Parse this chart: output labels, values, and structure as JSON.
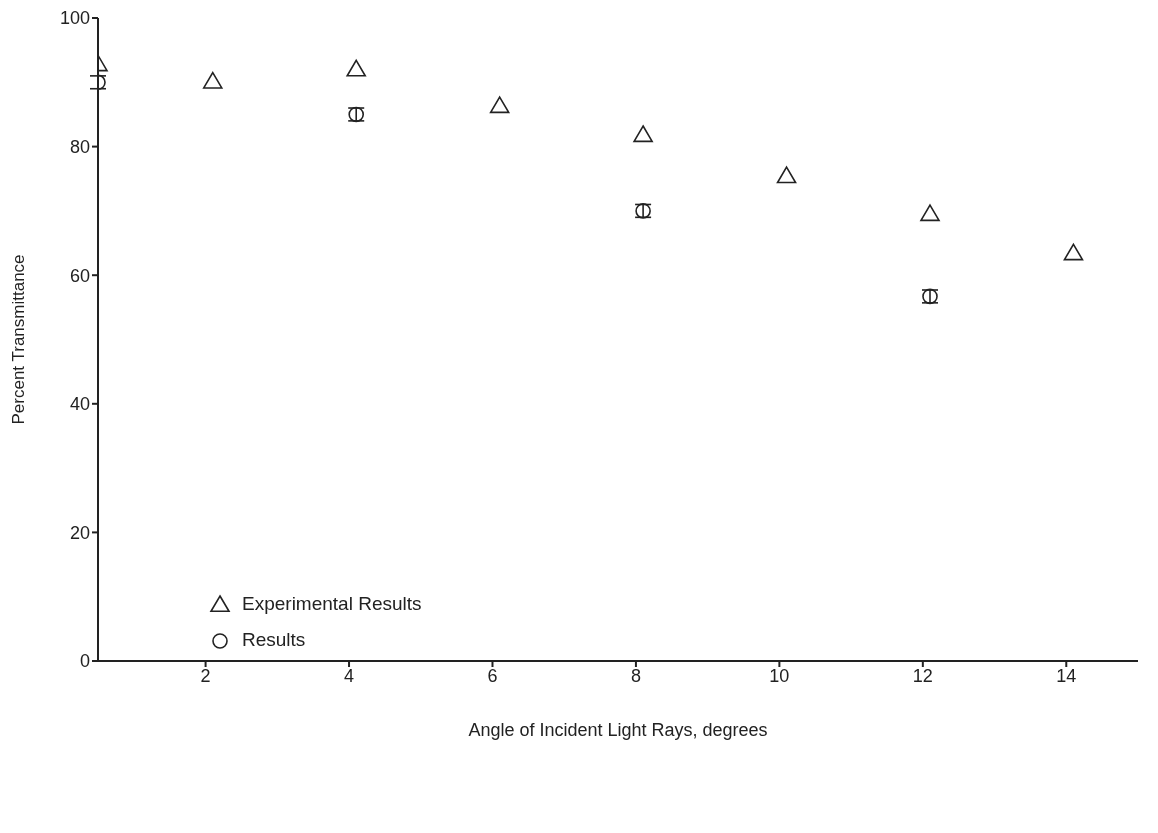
{
  "chart_data": {
    "type": "scatter",
    "xlabel": "Angle of Incident Light Rays, degrees",
    "ylabel": "Percent Transmittance",
    "xlim": [
      0.5,
      15
    ],
    "xticks": [
      2,
      4,
      6,
      8,
      10,
      12,
      14
    ],
    "ylim": [
      0,
      100
    ],
    "yticks": [
      0,
      20,
      40,
      60,
      80,
      100
    ],
    "grid": false,
    "legend": "bottom left",
    "series": [
      {
        "name": "Experimental Results",
        "color": "#222222",
        "marker": "triangle",
        "x": [
          0.5,
          2.1,
          4.1,
          6.1,
          8.1,
          10.1,
          12.1,
          14.1
        ],
        "values": [
          92.8,
          90.1,
          92,
          86.3,
          81.8,
          75.4,
          69.5,
          63.4
        ]
      },
      {
        "name": "Results",
        "color": "#222222",
        "marker": "circle",
        "x": [
          0.5,
          4.1,
          8.1,
          12.1
        ],
        "values": [
          90,
          85,
          70,
          56.7
        ],
        "errors": [
          1,
          1,
          1,
          1
        ]
      }
    ]
  }
}
